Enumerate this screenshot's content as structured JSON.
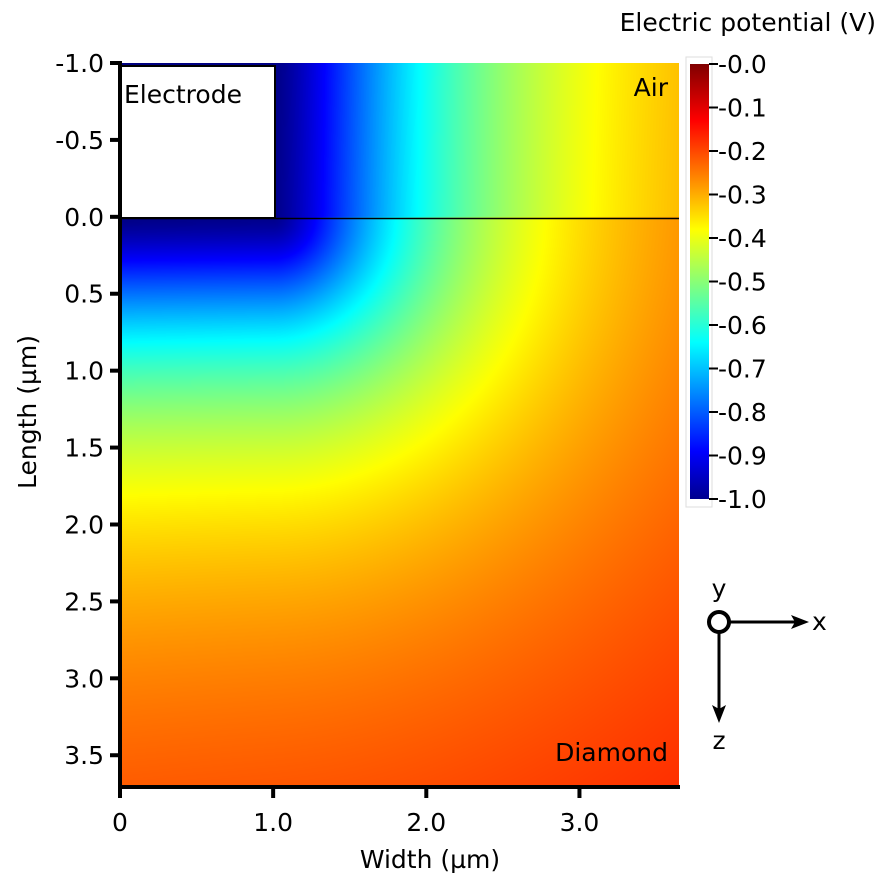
{
  "chart_data": {
    "type": "heatmap",
    "title": "",
    "xlabel": "Width (µm)",
    "ylabel": "Length (µm)",
    "xlim": [
      0,
      3.65
    ],
    "ylim": [
      -1.0,
      3.7
    ],
    "x_ticks": [
      "0",
      "1.0",
      "2.0",
      "3.0"
    ],
    "y_ticks": [
      "-1.0",
      "-0.5",
      "0.0",
      "0.5",
      "1.0",
      "1.5",
      "2.0",
      "2.5",
      "3.0",
      "3.5"
    ],
    "colorbar": {
      "title": "Electric potential (V)",
      "min": -1.0,
      "max": 0.0,
      "colormap": "jet",
      "ticks": [
        "-0.0",
        "-0.1",
        "-0.2",
        "-0.3",
        "-0.4",
        "-0.5",
        "-0.6",
        "-0.7",
        "-0.8",
        "-0.9",
        "-1.0"
      ]
    },
    "regions": {
      "electrode_label": "Electrode",
      "air_label": "Air",
      "diamond_label": "Diamond"
    },
    "electrode": {
      "x_range": [
        0,
        1.0
      ],
      "length_range": [
        -1.0,
        0.0
      ]
    },
    "interface_length": 0.0,
    "potential_samples": [
      {
        "width": 1.0,
        "length": 0.0,
        "value": -1.0
      },
      {
        "width": 0.0,
        "length": 0.4,
        "value": -0.9
      },
      {
        "width": 0.0,
        "length": 0.75,
        "value": -0.7
      },
      {
        "width": 0.0,
        "length": 1.5,
        "value": -0.45
      },
      {
        "width": 2.0,
        "length": 0.0,
        "value": -0.4
      },
      {
        "width": 2.5,
        "length": -1.0,
        "value": -0.33
      },
      {
        "width": 3.5,
        "length": -1.0,
        "value": -0.22
      },
      {
        "width": 0.0,
        "length": 3.5,
        "value": -0.15
      },
      {
        "width": 3.5,
        "length": 3.5,
        "value": -0.05
      }
    ],
    "coordinate_axes": {
      "x_label": "x",
      "y_label": "y",
      "z_label": "z"
    }
  }
}
